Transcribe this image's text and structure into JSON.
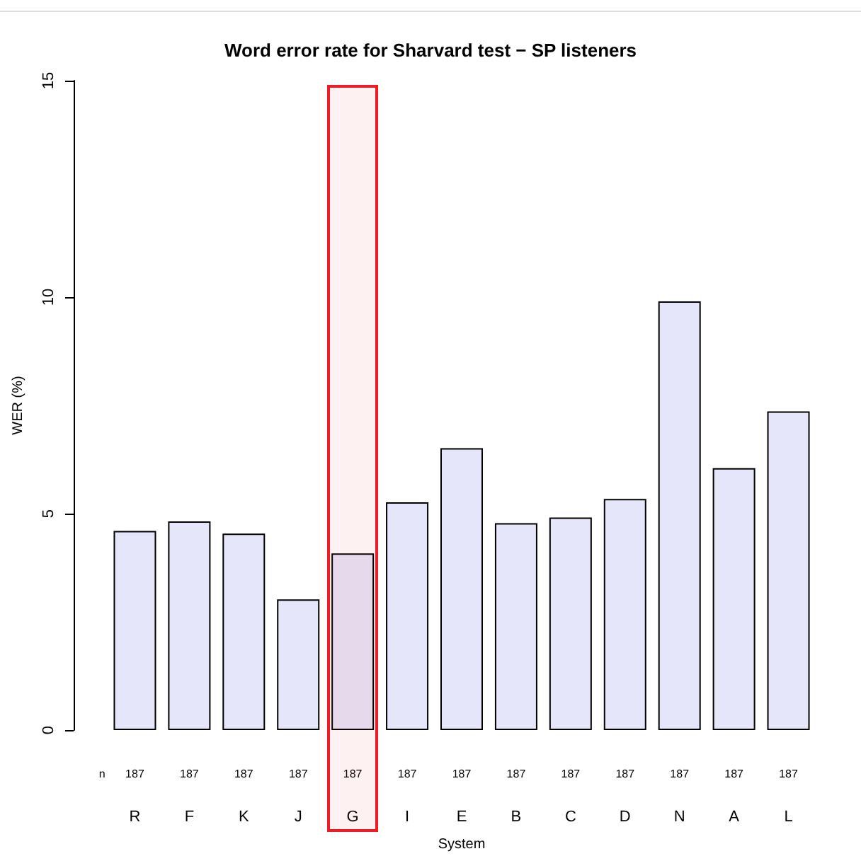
{
  "chart_data": {
    "type": "bar",
    "title": "Word error rate for Sharvard test − SP listeners",
    "xlabel": "System",
    "ylabel": "WER (%)",
    "categories": [
      "R",
      "F",
      "K",
      "J",
      "G",
      "I",
      "E",
      "B",
      "C",
      "D",
      "N",
      "A",
      "L"
    ],
    "values": [
      4.6,
      4.82,
      4.54,
      3.02,
      4.08,
      5.26,
      6.51,
      4.78,
      4.91,
      5.34,
      9.9,
      6.05,
      7.36
    ],
    "color": "#e6e6fa",
    "ylim": [
      0,
      15
    ],
    "yticks": [
      0,
      5,
      10,
      15
    ],
    "grid": false,
    "bands": [
      {
        "axis": "x",
        "from": "G",
        "to": "G",
        "color": "#ee1c25"
      }
    ],
    "annotations": [
      "n",
      "187",
      "187",
      "187",
      "187",
      "187",
      "187",
      "187",
      "187",
      "187",
      "187",
      "187",
      "187",
      "187"
    ]
  }
}
